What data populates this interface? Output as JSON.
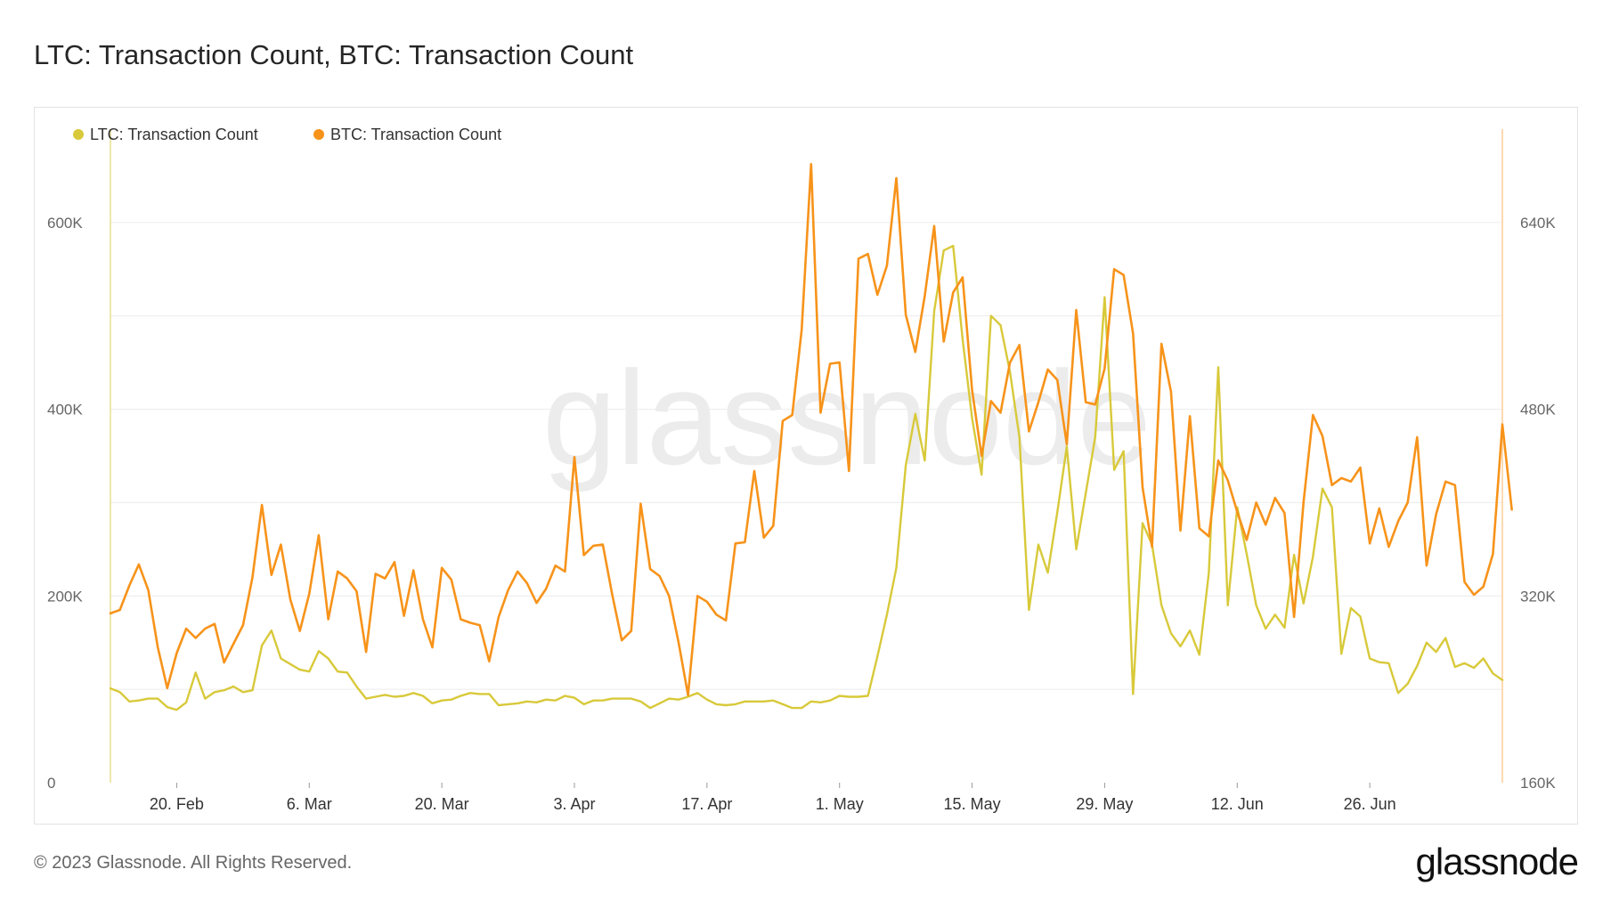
{
  "header": {
    "title": "LTC: Transaction Count, BTC: Transaction Count"
  },
  "footer": {
    "copyright": "© 2023 Glassnode. All Rights Reserved.",
    "logo_text": "glassnode"
  },
  "watermark": "glassnode",
  "chart_data": {
    "type": "line",
    "title": "LTC: Transaction Count, BTC: Transaction Count",
    "x_start": "2023-02-13",
    "x_ticks": [
      "20. Feb",
      "6. Mar",
      "20. Mar",
      "3. Apr",
      "17. Apr",
      "1. May",
      "15. May",
      "29. May",
      "12. Jun",
      "26. Jun"
    ],
    "x_tick_dates": [
      "2023-02-20",
      "2023-03-06",
      "2023-03-20",
      "2023-04-03",
      "2023-04-17",
      "2023-05-01",
      "2023-05-15",
      "2023-05-29",
      "2023-06-12",
      "2023-06-26"
    ],
    "y_left": {
      "ticks": [
        "0",
        "200K",
        "400K",
        "600K"
      ],
      "tick_values": [
        0,
        200000,
        400000,
        600000
      ],
      "range": [
        0,
        700000
      ]
    },
    "y_right": {
      "ticks": [
        "160K",
        "320K",
        "480K",
        "640K"
      ],
      "tick_values": [
        160000,
        320000,
        480000,
        640000
      ],
      "range": [
        160000,
        720000
      ]
    },
    "grid": true,
    "legend_position": "top-left",
    "series": [
      {
        "name": "LTC: Transaction Count",
        "color": "#d8c93a",
        "axis": "left",
        "values": [
          101000,
          97000,
          87000,
          88000,
          90000,
          90000,
          81000,
          78000,
          86000,
          118000,
          90000,
          97000,
          99000,
          103000,
          97000,
          99000,
          147000,
          163000,
          133000,
          127000,
          121000,
          119000,
          141000,
          133000,
          119000,
          118000,
          103000,
          90000,
          92000,
          94000,
          92000,
          93000,
          96000,
          93000,
          85000,
          88000,
          89000,
          93000,
          96000,
          95000,
          95000,
          83000,
          84000,
          85000,
          87000,
          86000,
          89000,
          88000,
          93000,
          91000,
          84000,
          88000,
          88000,
          90000,
          90000,
          90000,
          87000,
          80000,
          85000,
          90000,
          89000,
          92000,
          96000,
          89000,
          84000,
          83000,
          84000,
          87000,
          87000,
          87000,
          88000,
          84000,
          80000,
          80000,
          87000,
          86000,
          88000,
          93000,
          92000,
          92000,
          93000,
          135000,
          180000,
          230000,
          340000,
          395000,
          345000,
          505000,
          570000,
          575000,
          475000,
          390000,
          330000,
          500000,
          490000,
          440000,
          370000,
          185000,
          255000,
          225000,
          290000,
          360000,
          250000,
          310000,
          370000,
          520000,
          335000,
          355000,
          95000,
          278000,
          255000,
          190000,
          160000,
          146000,
          163000,
          137000,
          225000,
          445000,
          190000,
          295000,
          245000,
          190000,
          165000,
          180000,
          166000,
          244000,
          192000,
          242000,
          315000,
          295000,
          138000,
          187000,
          178000,
          133000,
          129000,
          128000,
          96000,
          106000,
          125000,
          150000,
          140000,
          155000,
          124000,
          128000,
          123000,
          133000,
          117000,
          110000
        ]
      },
      {
        "name": "BTC: Transaction Count",
        "color": "#f7931a",
        "axis": "right",
        "values": [
          305000,
          308000,
          329000,
          347000,
          325000,
          276000,
          241000,
          271000,
          292000,
          284000,
          292000,
          296000,
          263000,
          279000,
          295000,
          336000,
          398000,
          338000,
          364000,
          317000,
          290000,
          322000,
          372000,
          300000,
          341000,
          335000,
          324000,
          272000,
          339000,
          335000,
          349000,
          303000,
          342000,
          300000,
          276000,
          344000,
          334000,
          300000,
          297000,
          295000,
          264000,
          302000,
          325000,
          341000,
          331000,
          314000,
          326000,
          346000,
          341000,
          439000,
          355000,
          363000,
          364000,
          321000,
          282000,
          290000,
          399000,
          343000,
          337000,
          320000,
          280000,
          235000,
          320000,
          315000,
          304000,
          299000,
          365000,
          366000,
          427000,
          370000,
          380000,
          470000,
          475000,
          548000,
          690000,
          477000,
          519000,
          520000,
          427000,
          609000,
          613000,
          578000,
          603000,
          678000,
          561000,
          529000,
          577000,
          637000,
          538000,
          580000,
          593000,
          496000,
          440000,
          487000,
          477000,
          520000,
          535000,
          461000,
          486000,
          514000,
          505000,
          450000,
          565000,
          486000,
          484000,
          515000,
          600000,
          595000,
          545000,
          413000,
          362000,
          536000,
          495000,
          376000,
          474000,
          378000,
          371000,
          436000,
          419000,
          392000,
          368000,
          400000,
          381000,
          404000,
          391000,
          302000,
          400000,
          475000,
          457000,
          415000,
          421000,
          418000,
          430000,
          365000,
          395000,
          362000,
          384000,
          400000,
          456000,
          346000,
          390000,
          418000,
          415000,
          332000,
          321000,
          328000,
          356000,
          467000,
          394000
        ]
      }
    ]
  }
}
